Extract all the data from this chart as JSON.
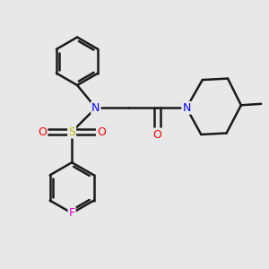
{
  "bg_color": "#e8e8e8",
  "bond_color": "#1a1a1a",
  "bond_width": 1.8,
  "atom_colors": {
    "N": "#0000ff",
    "O": "#ff0000",
    "S": "#bbbb00",
    "F": "#dd00dd",
    "C": "#1a1a1a"
  },
  "font_size": 9
}
